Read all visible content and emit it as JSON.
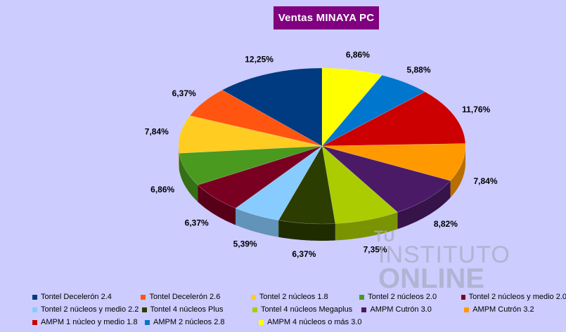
{
  "chart_data": {
    "type": "pie",
    "title": "Ventas MINAYA PC",
    "series": [
      {
        "name": "AMPM 4 núcleos o más 3.0",
        "value": 6.86,
        "label": "6,86%",
        "color": "#ffff00"
      },
      {
        "name": "AMPM 2 núcleos 2.8",
        "value": 5.88,
        "label": "5,88%",
        "color": "#0077cc"
      },
      {
        "name": "AMPM 1 núcleo y medio 1.8",
        "value": 11.76,
        "label": "11,76%",
        "color": "#cc0000"
      },
      {
        "name": "AMPM Cutrón 3.2",
        "value": 7.84,
        "label": "7,84%",
        "color": "#ff9900"
      },
      {
        "name": "AMPM Cutrón 3.0",
        "value": 8.82,
        "label": "8,82%",
        "color": "#4b1a66"
      },
      {
        "name": "Tontel 4 núcleos Megaplus",
        "value": 7.35,
        "label": "7,35%",
        "color": "#aacc00"
      },
      {
        "name": "Tontel 4 núcleos Plus",
        "value": 6.37,
        "label": "6,37%",
        "color": "#2b3d00"
      },
      {
        "name": "Tontel 2 núcleos y medio 2.2",
        "value": 5.39,
        "label": "5,39%",
        "color": "#88ccff"
      },
      {
        "name": "Tontel 2 núcleos y medio 2.0",
        "value": 6.37,
        "label": "6,37%",
        "color": "#7a0022"
      },
      {
        "name": "Tontel 2 núcleos 2.0",
        "value": 6.86,
        "label": "6,86%",
        "color": "#4a9a1f"
      },
      {
        "name": "Tontel 2 núcleos 1.8",
        "value": 7.84,
        "label": "7,84%",
        "color": "#ffcc22"
      },
      {
        "name": "Tontel Decelerón 2.6",
        "value": 6.37,
        "label": "6,37%",
        "color": "#ff5511"
      },
      {
        "name": "Tontel Decelerón 2.4",
        "value": 12.25,
        "label": "12,25%",
        "color": "#003a80"
      }
    ],
    "legend_rows": [
      [
        "Tontel Decelerón 2.4",
        "Tontel Decelerón 2.6",
        "Tontel 2 núcleos 1.8",
        "Tontel 2 núcleos 2.0",
        "Tontel 2 núcleos y medio 2.0"
      ],
      [
        "Tontel 2 núcleos y medio 2.2",
        "Tontel 4 núcleos Plus",
        "Tontel 4 núcleos Megaplus",
        "AMPM Cutrón 3.0",
        "AMPM Cutrón 3.2"
      ],
      [
        "AMPM 1 núcleo y medio 1.8",
        "AMPM 2 núcleos 2.8",
        "AMPM 4 núcleos o más 3.0"
      ]
    ],
    "legend_position": "bottom"
  },
  "watermark": {
    "line1": "TU",
    "line2": "INSTITUTO",
    "line3": "ONLINE"
  }
}
